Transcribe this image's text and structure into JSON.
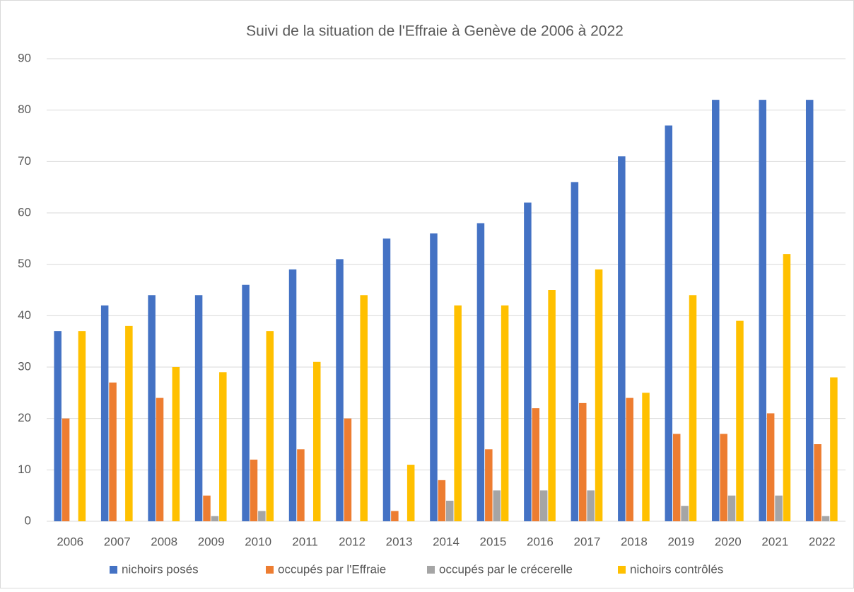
{
  "chart_data": {
    "type": "bar",
    "title": "Suivi de la situation de l'Effraie à Genève de 2006 à 2022",
    "categories": [
      "2006",
      "2007",
      "2008",
      "2009",
      "2010",
      "2011",
      "2012",
      "2013",
      "2014",
      "2015",
      "2016",
      "2017",
      "2018",
      "2019",
      "2020",
      "2021",
      "2022"
    ],
    "series": [
      {
        "name": "nichoirs posés",
        "color": "#4472c4",
        "values": [
          37,
          42,
          44,
          44,
          46,
          49,
          51,
          55,
          56,
          58,
          62,
          66,
          71,
          77,
          82,
          82,
          82
        ]
      },
      {
        "name": "occupés par l'Effraie",
        "color": "#ed7d31",
        "values": [
          20,
          27,
          24,
          5,
          12,
          14,
          20,
          2,
          8,
          14,
          22,
          23,
          24,
          17,
          17,
          21,
          15
        ]
      },
      {
        "name": "occupés par le crécerelle",
        "color": "#a5a5a5",
        "values": [
          0,
          0,
          0,
          1,
          2,
          0,
          0,
          0,
          4,
          6,
          6,
          6,
          0,
          3,
          5,
          5,
          1
        ]
      },
      {
        "name": "nichoirs contrôlés",
        "color": "#ffc000",
        "values": [
          37,
          38,
          30,
          29,
          37,
          31,
          44,
          11,
          42,
          42,
          45,
          49,
          25,
          44,
          39,
          52,
          28
        ]
      }
    ],
    "ylim": [
      0,
      90
    ],
    "yticks": [
      0,
      10,
      20,
      30,
      40,
      50,
      60,
      70,
      80,
      90
    ],
    "grid": true,
    "legend": "bottom"
  }
}
